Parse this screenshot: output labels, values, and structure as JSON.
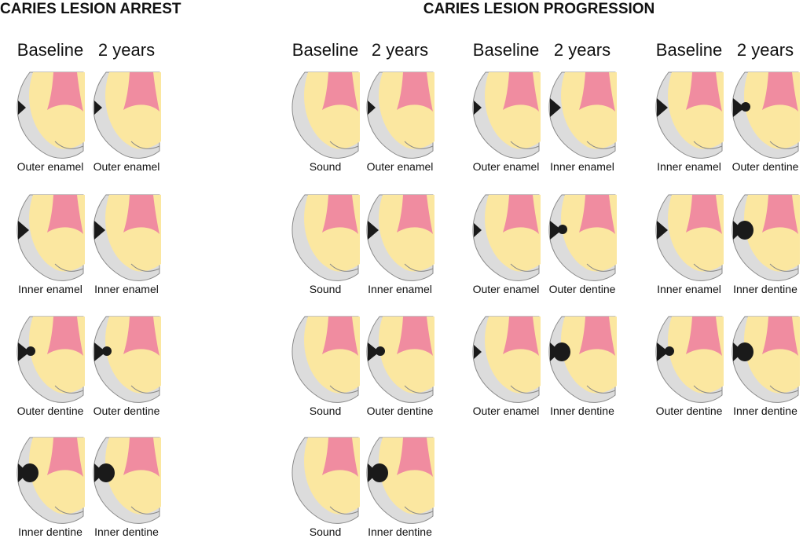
{
  "sections": [
    {
      "title": "CARIES LESION ARREST",
      "groups": [
        {
          "headers": [
            "Baseline",
            "2 years"
          ],
          "rows": [
            [
              "Outer enamel",
              "Outer enamel"
            ],
            [
              "Inner enamel",
              "Inner enamel"
            ],
            [
              "Outer dentine",
              "Outer dentine"
            ],
            [
              "Inner dentine",
              "Inner dentine"
            ]
          ]
        }
      ]
    },
    {
      "title": "CARIES LESION PROGRESSION",
      "groups": [
        {
          "headers": [
            "Baseline",
            "2 years"
          ],
          "rows": [
            [
              "Sound",
              "Outer enamel"
            ],
            [
              "Sound",
              "Inner enamel"
            ],
            [
              "Sound",
              "Outer dentine"
            ],
            [
              "Sound",
              "Inner dentine"
            ]
          ]
        },
        {
          "headers": [
            "Baseline",
            "2 years"
          ],
          "rows": [
            [
              "Outer enamel",
              "Inner enamel"
            ],
            [
              "Outer enamel",
              "Outer dentine"
            ],
            [
              "Outer enamel",
              "Inner dentine"
            ]
          ]
        },
        {
          "headers": [
            "Baseline",
            "2 years"
          ],
          "rows": [
            [
              "Inner enamel",
              "Outer dentine"
            ],
            [
              "Inner enamel",
              "Inner dentine"
            ],
            [
              "Outer dentine",
              "Inner dentine"
            ]
          ]
        }
      ]
    }
  ]
}
